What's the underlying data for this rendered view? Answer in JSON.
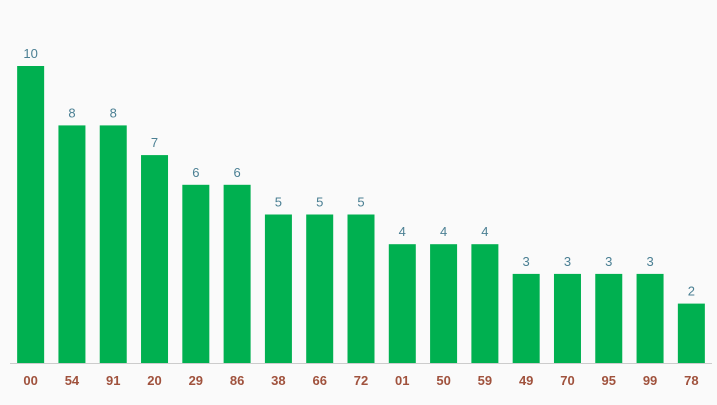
{
  "chart_data": {
    "type": "bar",
    "categories": [
      "00",
      "54",
      "91",
      "20",
      "29",
      "86",
      "38",
      "66",
      "72",
      "01",
      "50",
      "59",
      "49",
      "70",
      "95",
      "99",
      "78"
    ],
    "values": [
      10,
      8,
      8,
      7,
      6,
      6,
      5,
      5,
      5,
      4,
      4,
      4,
      3,
      3,
      3,
      3,
      2
    ],
    "ylim": [
      0,
      10
    ],
    "grid": false,
    "legend": "none",
    "colors": {
      "bar": "#00b050",
      "value_label": "#4a7f93",
      "tick_label": "#a0523d",
      "baseline": "#cccccc",
      "background": "#fafafa"
    }
  }
}
